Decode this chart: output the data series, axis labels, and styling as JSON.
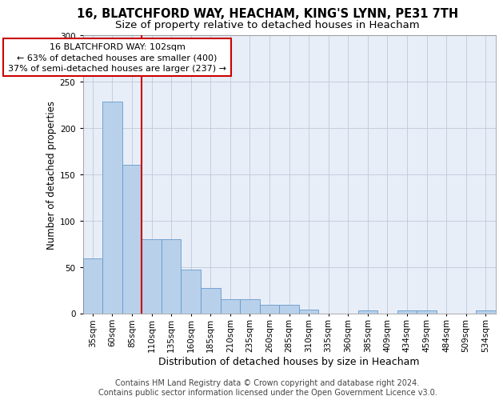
{
  "title": "16, BLATCHFORD WAY, HEACHAM, KING'S LYNN, PE31 7TH",
  "subtitle": "Size of property relative to detached houses in Heacham",
  "xlabel": "Distribution of detached houses by size in Heacham",
  "ylabel": "Number of detached properties",
  "bar_labels": [
    "35sqm",
    "60sqm",
    "85sqm",
    "110sqm",
    "135sqm",
    "160sqm",
    "185sqm",
    "210sqm",
    "235sqm",
    "260sqm",
    "285sqm",
    "310sqm",
    "335sqm",
    "360sqm",
    "385sqm",
    "409sqm",
    "434sqm",
    "459sqm",
    "484sqm",
    "509sqm",
    "534sqm"
  ],
  "bar_values": [
    59,
    228,
    160,
    80,
    80,
    47,
    27,
    15,
    15,
    9,
    9,
    4,
    0,
    0,
    3,
    0,
    3,
    3,
    0,
    0,
    3
  ],
  "bar_color": "#b8d0ea",
  "bar_edge_color": "#6699cc",
  "vline_color": "#cc0000",
  "vline_pos": 2.5,
  "annotation_lines": [
    "16 BLATCHFORD WAY: 102sqm",
    "← 63% of detached houses are smaller (400)",
    "37% of semi-detached houses are larger (237) →"
  ],
  "annotation_box_edgecolor": "#cc0000",
  "annotation_box_facecolor": "#ffffff",
  "ylim": [
    0,
    300
  ],
  "yticks": [
    0,
    50,
    100,
    150,
    200,
    250,
    300
  ],
  "bg_color": "#e8eef8",
  "grid_color": "#c0c8d8",
  "title_fontsize": 10.5,
  "subtitle_fontsize": 9.5,
  "ylabel_fontsize": 8.5,
  "xlabel_fontsize": 9,
  "tick_fontsize": 7.5,
  "ann_fontsize": 8,
  "footer_fontsize": 7,
  "footer_line1": "Contains HM Land Registry data © Crown copyright and database right 2024.",
  "footer_line2": "Contains public sector information licensed under the Open Government Licence v3.0."
}
